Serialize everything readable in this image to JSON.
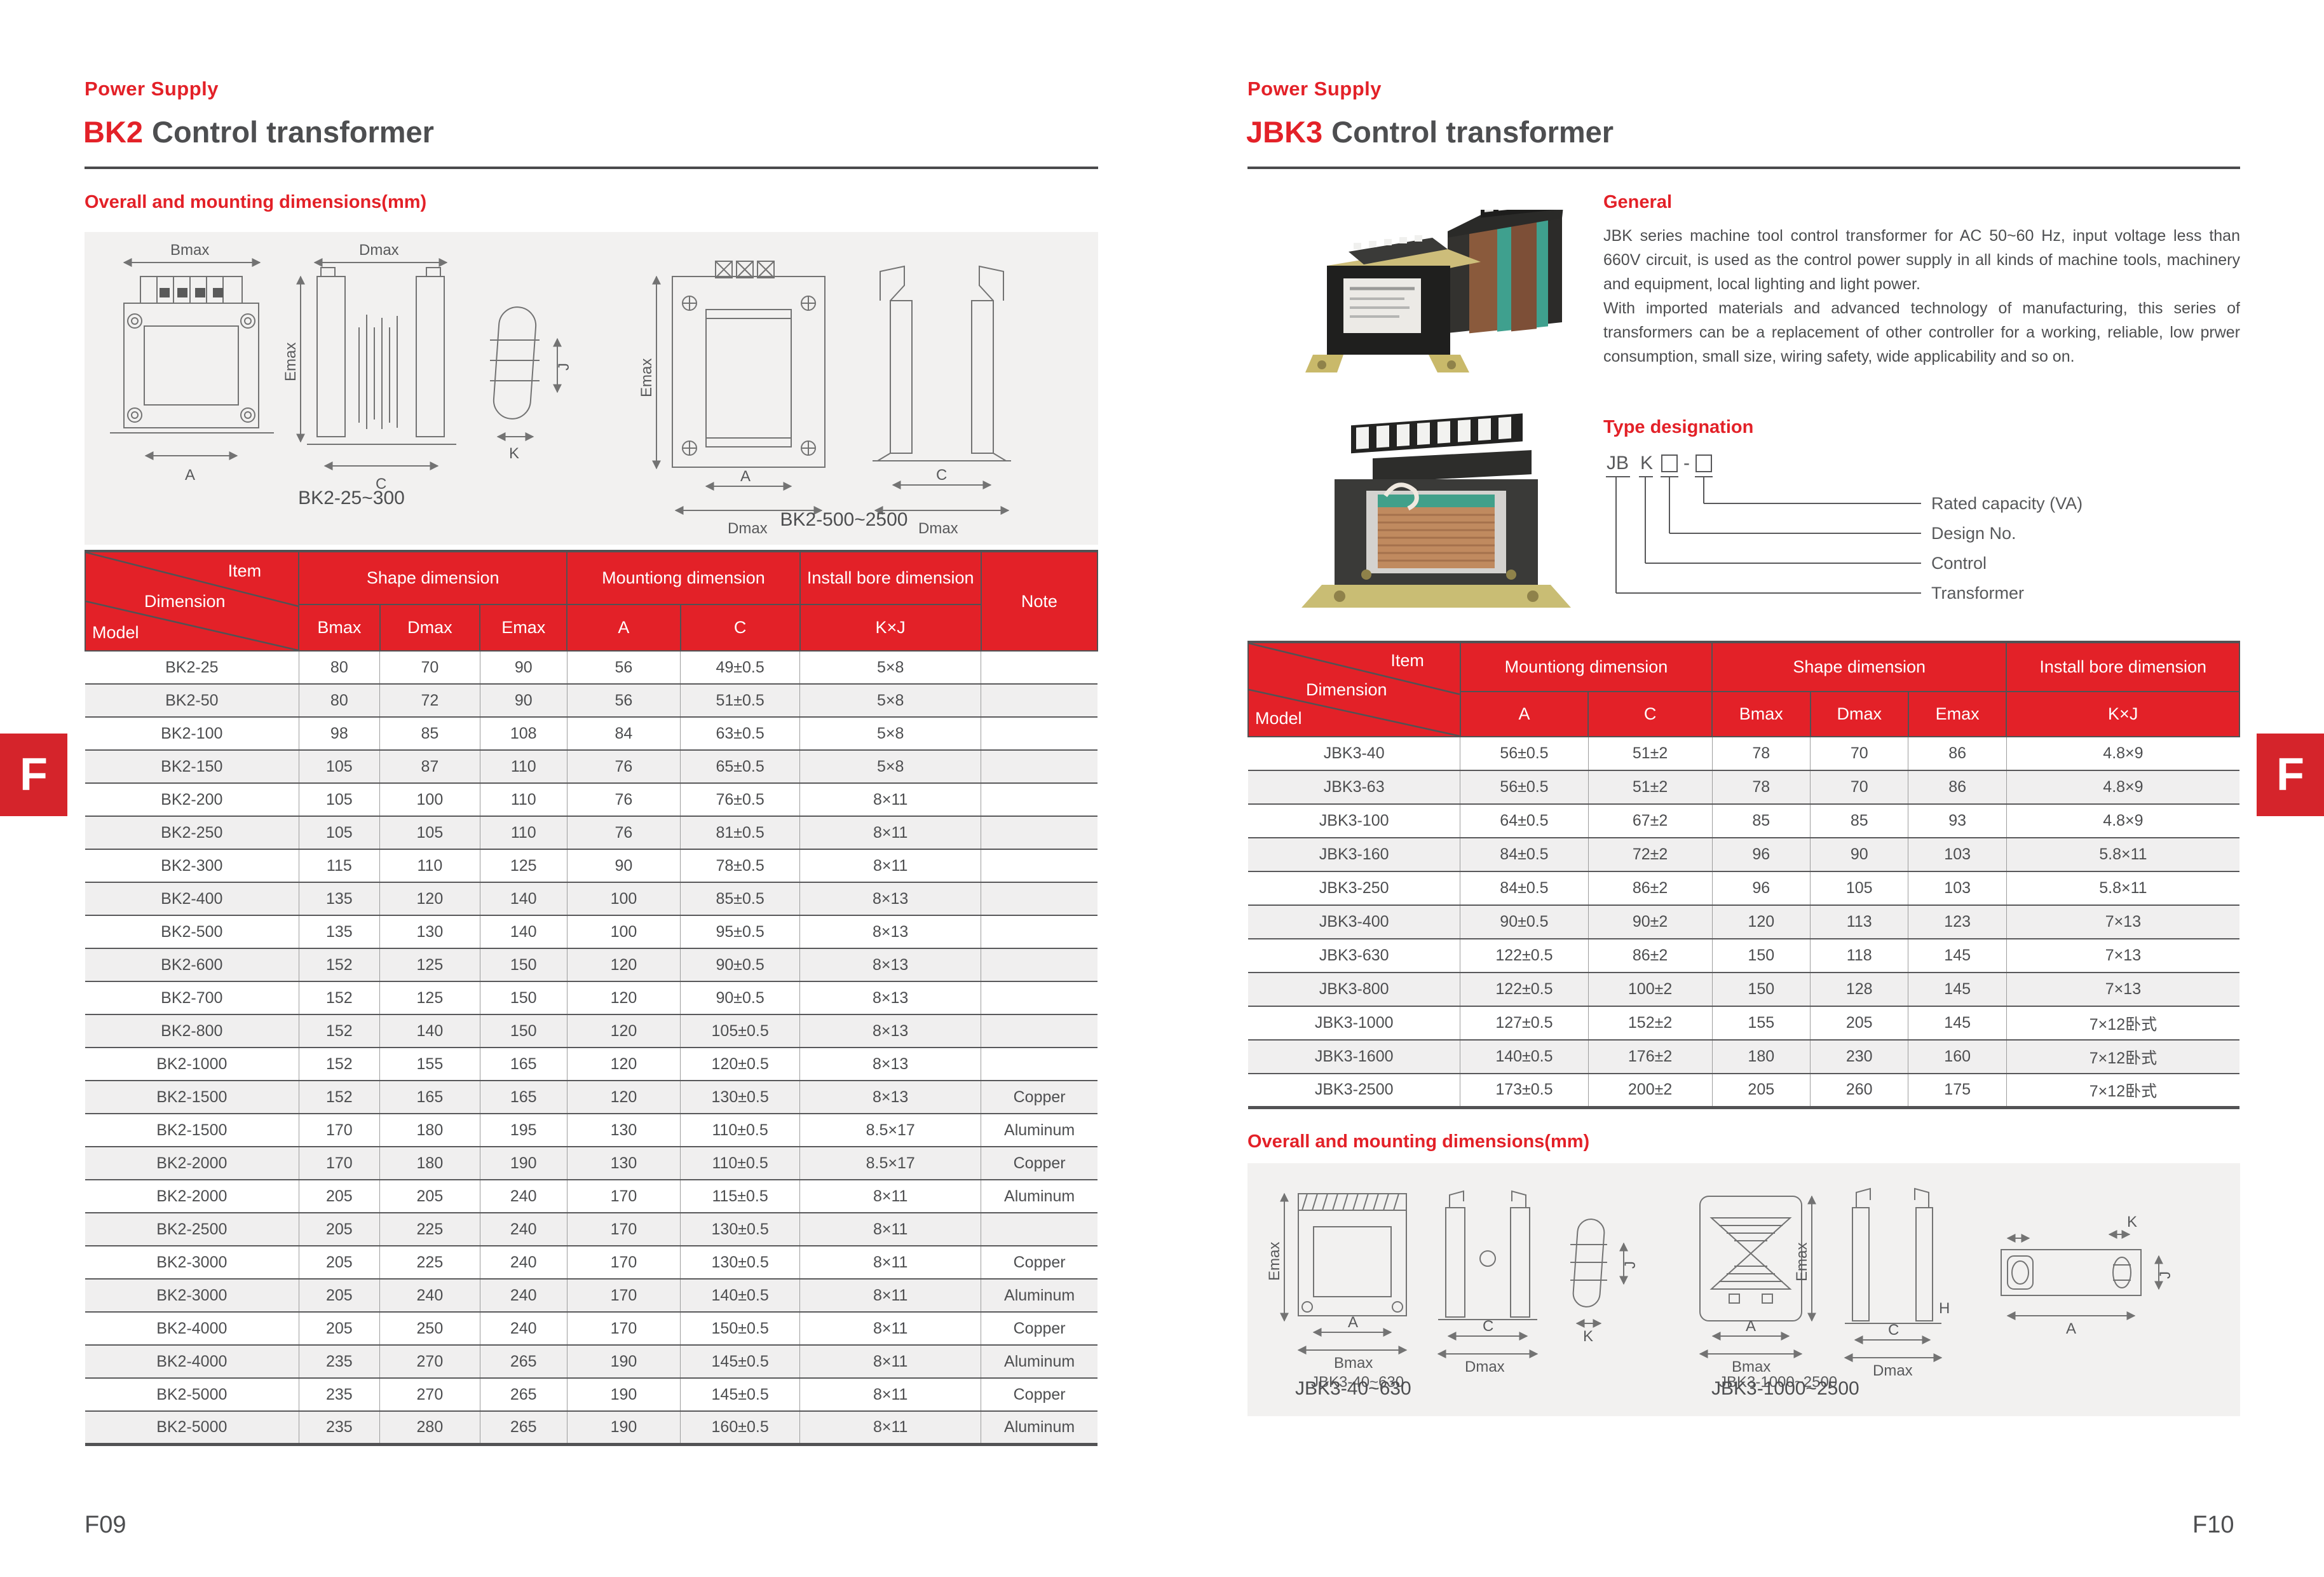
{
  "accent": "#e32128",
  "tab_label": "F",
  "dims": {
    "bmax": "Bmax",
    "dmax": "Dmax",
    "emax": "Emax",
    "a": "A",
    "c": "C",
    "k": "K",
    "j": "J",
    "h": "H"
  },
  "left_page": {
    "eyebrow": "Power Supply",
    "title_model": "BK2",
    "title_rest": "Control transformer",
    "section_dimensions": "Overall and mounting dimensions(mm)",
    "diagram_captions": [
      "BK2-25~300",
      "BK2-500~2500"
    ],
    "table": {
      "corner": {
        "item": "Item",
        "dimension": "Dimension",
        "model": "Model"
      },
      "group_shape": "Shape dimension",
      "group_mounting": "Mountiong dimension",
      "group_bore": "Install bore dimension",
      "group_note": "Note",
      "sub": {
        "bmax": "Bmax",
        "dmax": "Dmax",
        "emax": "Emax",
        "a": "A",
        "c": "C",
        "kj": "K×J"
      },
      "rows": [
        [
          "BK2-25",
          "80",
          "70",
          "90",
          "56",
          "49±0.5",
          "5×8",
          ""
        ],
        [
          "BK2-50",
          "80",
          "72",
          "90",
          "56",
          "51±0.5",
          "5×8",
          ""
        ],
        [
          "BK2-100",
          "98",
          "85",
          "108",
          "84",
          "63±0.5",
          "5×8",
          ""
        ],
        [
          "BK2-150",
          "105",
          "87",
          "110",
          "76",
          "65±0.5",
          "5×8",
          ""
        ],
        [
          "BK2-200",
          "105",
          "100",
          "110",
          "76",
          "76±0.5",
          "8×11",
          ""
        ],
        [
          "BK2-250",
          "105",
          "105",
          "110",
          "76",
          "81±0.5",
          "8×11",
          ""
        ],
        [
          "BK2-300",
          "115",
          "110",
          "125",
          "90",
          "78±0.5",
          "8×11",
          ""
        ],
        [
          "BK2-400",
          "135",
          "120",
          "140",
          "100",
          "85±0.5",
          "8×13",
          ""
        ],
        [
          "BK2-500",
          "135",
          "130",
          "140",
          "100",
          "95±0.5",
          "8×13",
          ""
        ],
        [
          "BK2-600",
          "152",
          "125",
          "150",
          "120",
          "90±0.5",
          "8×13",
          ""
        ],
        [
          "BK2-700",
          "152",
          "125",
          "150",
          "120",
          "90±0.5",
          "8×13",
          ""
        ],
        [
          "BK2-800",
          "152",
          "140",
          "150",
          "120",
          "105±0.5",
          "8×13",
          ""
        ],
        [
          "BK2-1000",
          "152",
          "155",
          "165",
          "120",
          "120±0.5",
          "8×13",
          ""
        ],
        [
          "BK2-1500",
          "152",
          "165",
          "165",
          "120",
          "130±0.5",
          "8×13",
          "Copper"
        ],
        [
          "BK2-1500",
          "170",
          "180",
          "195",
          "130",
          "110±0.5",
          "8.5×17",
          "Aluminum"
        ],
        [
          "BK2-2000",
          "170",
          "180",
          "190",
          "130",
          "110±0.5",
          "8.5×17",
          "Copper"
        ],
        [
          "BK2-2000",
          "205",
          "205",
          "240",
          "170",
          "115±0.5",
          "8×11",
          "Aluminum"
        ],
        [
          "BK2-2500",
          "205",
          "225",
          "240",
          "170",
          "130±0.5",
          "8×11",
          ""
        ],
        [
          "BK2-3000",
          "205",
          "225",
          "240",
          "170",
          "130±0.5",
          "8×11",
          "Copper"
        ],
        [
          "BK2-3000",
          "205",
          "240",
          "240",
          "170",
          "140±0.5",
          "8×11",
          "Aluminum"
        ],
        [
          "BK2-4000",
          "205",
          "250",
          "240",
          "170",
          "150±0.5",
          "8×11",
          "Copper"
        ],
        [
          "BK2-4000",
          "235",
          "270",
          "265",
          "190",
          "145±0.5",
          "8×11",
          "Aluminum"
        ],
        [
          "BK2-5000",
          "235",
          "270",
          "265",
          "190",
          "145±0.5",
          "8×11",
          "Copper"
        ],
        [
          "BK2-5000",
          "235",
          "280",
          "265",
          "190",
          "160±0.5",
          "8×11",
          "Aluminum"
        ]
      ]
    },
    "page_number": "F09"
  },
  "right_page": {
    "eyebrow": "Power Supply",
    "title_model": "JBK3",
    "title_rest": "Control transformer",
    "general_heading": "General",
    "general_p1": "JBK series machine tool control transformer for AC 50~60 Hz, input voltage less than 660V circuit, is used as the control power supply in all kinds of machine tools, machinery and equipment, local lighting and light power.",
    "general_p2": "With imported materials and advanced technology of manufacturing, this series of transformers can be a replacement of other controller for a working, reliable, low prwer consumption, small size, wiring safety, wide applicability and so on.",
    "type_heading": "Type designation",
    "type_code": {
      "prefix": "JB",
      "control": "K",
      "sep": "-"
    },
    "type_labels": [
      "Rated capacity (VA)",
      "Design No.",
      "Control",
      "Transformer"
    ],
    "section_dimensions": "Overall and mounting dimensions(mm)",
    "diagram_captions_small": [
      "JBK3-40~630",
      "JBK3-1000~2500"
    ],
    "diagram_captions": [
      "JBK3-40~630",
      "JBK3-1000~2500"
    ],
    "table": {
      "corner": {
        "item": "Item",
        "dimension": "Dimension",
        "model": "Model"
      },
      "group_mounting": "Mountiong dimension",
      "group_shape": "Shape dimension",
      "group_bore": "Install bore dimension",
      "sub": {
        "a": "A",
        "c": "C",
        "bmax": "Bmax",
        "dmax": "Dmax",
        "emax": "Emax",
        "kj": "K×J"
      },
      "rows": [
        [
          "JBK3-40",
          "56±0.5",
          "51±2",
          "78",
          "70",
          "86",
          "4.8×9"
        ],
        [
          "JBK3-63",
          "56±0.5",
          "51±2",
          "78",
          "70",
          "86",
          "4.8×9"
        ],
        [
          "JBK3-100",
          "64±0.5",
          "67±2",
          "85",
          "85",
          "93",
          "4.8×9"
        ],
        [
          "JBK3-160",
          "84±0.5",
          "72±2",
          "96",
          "90",
          "103",
          "5.8×11"
        ],
        [
          "JBK3-250",
          "84±0.5",
          "86±2",
          "96",
          "105",
          "103",
          "5.8×11"
        ],
        [
          "JBK3-400",
          "90±0.5",
          "90±2",
          "120",
          "113",
          "123",
          "7×13"
        ],
        [
          "JBK3-630",
          "122±0.5",
          "86±2",
          "150",
          "118",
          "145",
          "7×13"
        ],
        [
          "JBK3-800",
          "122±0.5",
          "100±2",
          "150",
          "128",
          "145",
          "7×13"
        ],
        [
          "JBK3-1000",
          "127±0.5",
          "152±2",
          "155",
          "205",
          "145",
          "7×12卧式"
        ],
        [
          "JBK3-1600",
          "140±0.5",
          "176±2",
          "180",
          "230",
          "160",
          "7×12卧式"
        ],
        [
          "JBK3-2500",
          "173±0.5",
          "200±2",
          "205",
          "260",
          "175",
          "7×12卧式"
        ]
      ]
    },
    "page_number": "F10"
  }
}
